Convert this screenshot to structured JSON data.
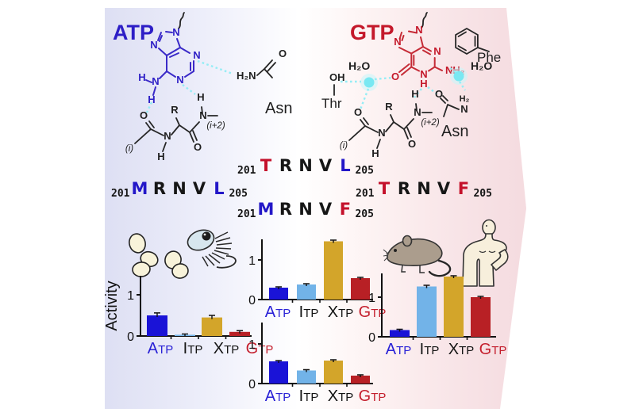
{
  "figure": {
    "atp": {
      "title": "ATP",
      "ring_n": {
        "n9": "N",
        "n7": "N",
        "n1": "N",
        "n3": "N"
      },
      "amino": {
        "h1": "H",
        "n": "N",
        "h2": "H"
      },
      "asn": {
        "h2n": "H₂N",
        "o": "O",
        "label": "Asn"
      }
    },
    "gtp": {
      "title": "GTP",
      "ring": {
        "n9": "N",
        "n7": "N",
        "n3": "N",
        "n1": "N",
        "n1_h": "H",
        "nh2": "NH₂",
        "o6": "O"
      },
      "phe_label": "Phe",
      "water1": "H₂O",
      "water2": "H₂O",
      "thr": {
        "oh": "OH",
        "label": "Thr"
      },
      "asn": {
        "o": "O",
        "h2": "H₂",
        "n": "N",
        "label": "Asn"
      }
    },
    "backbone": {
      "o1": "O",
      "i": "(i)",
      "n": "N",
      "h": "H",
      "r": "R",
      "o2": "O",
      "h2": "H",
      "n2": "N",
      "i2": "(i+2)"
    }
  },
  "colors": {
    "background_left": "#d3d5ef",
    "background_right": "#efcfd6",
    "hbond_cyan": "#8fecf4",
    "atp_blue": "#2d1ec6",
    "gtp_red": "#c4192b"
  },
  "sequences": [
    {
      "id": "trnvl",
      "start": "201",
      "end": "205",
      "letters": [
        [
          "T",
          "#c4112b"
        ],
        [
          "R",
          "#161616"
        ],
        [
          "N",
          "#161616"
        ],
        [
          "V",
          "#161616"
        ],
        [
          "L",
          "#2317c8"
        ]
      ]
    },
    {
      "id": "mrnvl",
      "start": "201",
      "end": "205",
      "letters": [
        [
          "M",
          "#2317c8"
        ],
        [
          "R",
          "#161616"
        ],
        [
          "N",
          "#161616"
        ],
        [
          "V",
          "#161616"
        ],
        [
          "L",
          "#2317c8"
        ]
      ]
    },
    {
      "id": "trnvf",
      "start": "201",
      "end": "205",
      "letters": [
        [
          "T",
          "#c4112b"
        ],
        [
          "R",
          "#161616"
        ],
        [
          "N",
          "#161616"
        ],
        [
          "V",
          "#161616"
        ],
        [
          "F",
          "#c4112b"
        ]
      ]
    },
    {
      "id": "mrnvf",
      "start": "201",
      "end": "205",
      "letters": [
        [
          "M",
          "#2317c8"
        ],
        [
          "R",
          "#161616"
        ],
        [
          "N",
          "#161616"
        ],
        [
          "V",
          "#161616"
        ],
        [
          "F",
          "#c4112b"
        ]
      ]
    }
  ],
  "chart_data": [
    {
      "id": "mrnvl_yeast",
      "type": "bar",
      "organisms": [
        "yeast cells",
        "flagellate"
      ],
      "title": "",
      "ylabel": "Activity",
      "xlabel": "",
      "categories": [
        "ATP",
        "ITP",
        "XTP",
        "GTP"
      ],
      "values": [
        0.5,
        0.03,
        0.45,
        0.1
      ],
      "errors": [
        0.06,
        0.02,
        0.05,
        0.03
      ],
      "yticks": [
        0,
        1
      ],
      "ylim": [
        0,
        1.45
      ],
      "bar_colors": [
        "#1a13d7",
        "#72b3e8",
        "#d3a52a",
        "#b82025"
      ],
      "label_colors": [
        "#2a22d6",
        "#141414",
        "#141414",
        "#c41f2d"
      ]
    },
    {
      "id": "trnvl_center",
      "type": "bar",
      "organisms": [],
      "title": "",
      "ylabel": "",
      "xlabel": "",
      "categories": [
        "ATP",
        "ITP",
        "XTP",
        "GTP"
      ],
      "values": [
        0.3,
        0.38,
        1.47,
        0.54
      ],
      "errors": [
        0.02,
        0.02,
        0.03,
        0.02
      ],
      "yticks": [
        0,
        1
      ],
      "ylim": [
        0,
        1.52
      ],
      "bar_colors": [
        "#1a13d7",
        "#72b3e8",
        "#d3a52a",
        "#b82025"
      ],
      "label_colors": [
        "#2a22d6",
        "#141414",
        "#141414",
        "#c41f2d"
      ]
    },
    {
      "id": "mrnvf_center",
      "type": "bar",
      "organisms": [],
      "title": "",
      "ylabel": "",
      "xlabel": "",
      "categories": [
        "ATP",
        "ITP",
        "XTP",
        "GTP"
      ],
      "values": [
        0.56,
        0.33,
        0.58,
        0.2
      ],
      "errors": [
        0.02,
        0.02,
        0.02,
        0.02
      ],
      "yticks": [
        0,
        1
      ],
      "ylim": [
        0,
        1.54
      ],
      "bar_colors": [
        "#1a13d7",
        "#72b3e8",
        "#d3a52a",
        "#b82025"
      ],
      "label_colors": [
        "#2a22d6",
        "#141414",
        "#141414",
        "#c41f2d"
      ]
    },
    {
      "id": "trnvf_mammal",
      "type": "bar",
      "organisms": [
        "mouse",
        "human"
      ],
      "title": "",
      "ylabel": "",
      "xlabel": "",
      "categories": [
        "ATP",
        "ITP",
        "XTP",
        "GTP"
      ],
      "values": [
        0.17,
        1.27,
        1.52,
        1.0
      ],
      "errors": [
        0.02,
        0.03,
        0.02,
        0.02
      ],
      "yticks": [
        0,
        1
      ],
      "ylim": [
        0,
        1.6
      ],
      "bar_colors": [
        "#1a13d7",
        "#72b3e8",
        "#d3a52a",
        "#b82025"
      ],
      "label_colors": [
        "#2a22d6",
        "#141414",
        "#141414",
        "#c41f2d"
      ]
    }
  ]
}
